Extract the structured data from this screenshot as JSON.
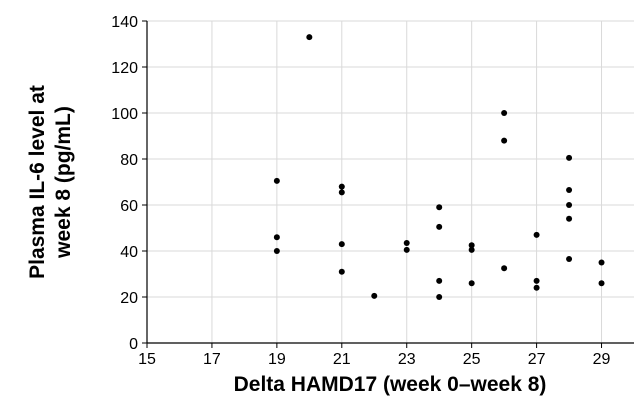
{
  "chart_data": {
    "type": "scatter",
    "xlabel": "Delta HAMD17 (week 0–week 8)",
    "ylabel_lines": [
      "Plasma IL-6 level at",
      "week 8 (pg/mL)"
    ],
    "xlim": [
      15,
      30
    ],
    "ylim": [
      0,
      140
    ],
    "xticks": [
      15,
      17,
      19,
      21,
      23,
      25,
      27,
      29
    ],
    "yticks": [
      0,
      20,
      40,
      60,
      80,
      100,
      120,
      140
    ],
    "grid": true,
    "marker_color": "#000000",
    "points": [
      {
        "x": 19,
        "y": 70.5
      },
      {
        "x": 19,
        "y": 46
      },
      {
        "x": 19,
        "y": 40
      },
      {
        "x": 20,
        "y": 133
      },
      {
        "x": 21,
        "y": 68
      },
      {
        "x": 21,
        "y": 65.5
      },
      {
        "x": 21,
        "y": 43
      },
      {
        "x": 21,
        "y": 31
      },
      {
        "x": 22,
        "y": 20.5
      },
      {
        "x": 23,
        "y": 43.5
      },
      {
        "x": 23,
        "y": 40.5
      },
      {
        "x": 24,
        "y": 59
      },
      {
        "x": 24,
        "y": 50.5
      },
      {
        "x": 24,
        "y": 27
      },
      {
        "x": 24,
        "y": 20
      },
      {
        "x": 25,
        "y": 42.5
      },
      {
        "x": 25,
        "y": 40.5
      },
      {
        "x": 25,
        "y": 26
      },
      {
        "x": 26,
        "y": 100
      },
      {
        "x": 26,
        "y": 88
      },
      {
        "x": 26,
        "y": 32.5
      },
      {
        "x": 27,
        "y": 47
      },
      {
        "x": 27,
        "y": 27
      },
      {
        "x": 27,
        "y": 24
      },
      {
        "x": 28,
        "y": 80.5
      },
      {
        "x": 28,
        "y": 66.5
      },
      {
        "x": 28,
        "y": 60
      },
      {
        "x": 28,
        "y": 54
      },
      {
        "x": 28,
        "y": 36.5
      },
      {
        "x": 29,
        "y": 35
      },
      {
        "x": 29,
        "y": 26
      }
    ]
  }
}
